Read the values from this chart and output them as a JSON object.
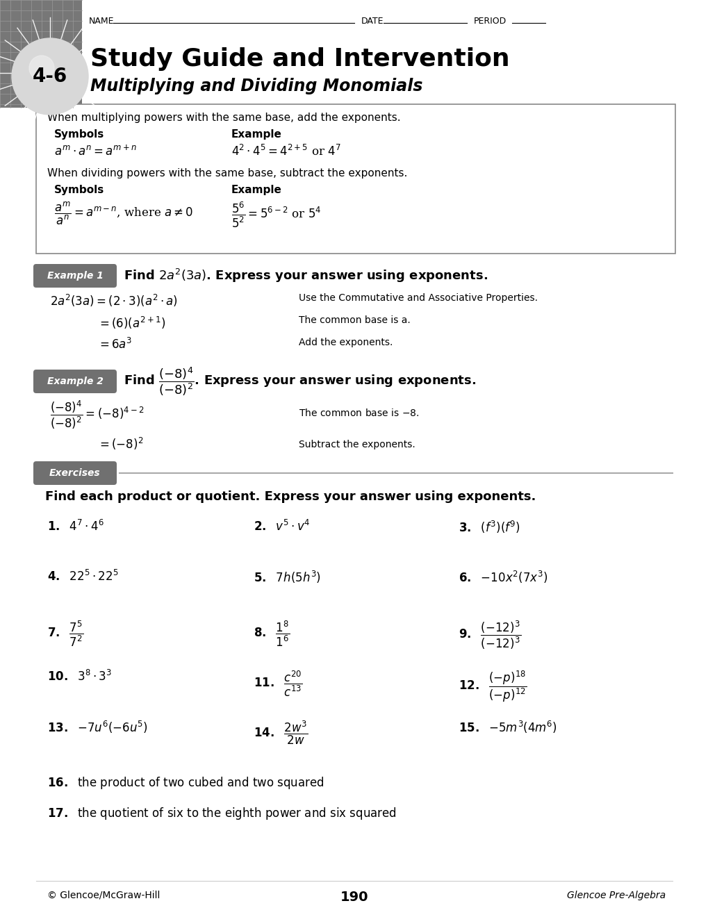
{
  "title_number": "4-6",
  "title_main": "Study Guide and Intervention",
  "title_sub": "Multiplying and Dividing Monomials",
  "page_number": "190",
  "footer_left": "© Glencoe/McGraw-Hill",
  "footer_right": "Glencoe Pre-Algebra",
  "bg_color": "#ffffff",
  "example_label_bg": "#707070",
  "exercises_label_bg": "#707070"
}
